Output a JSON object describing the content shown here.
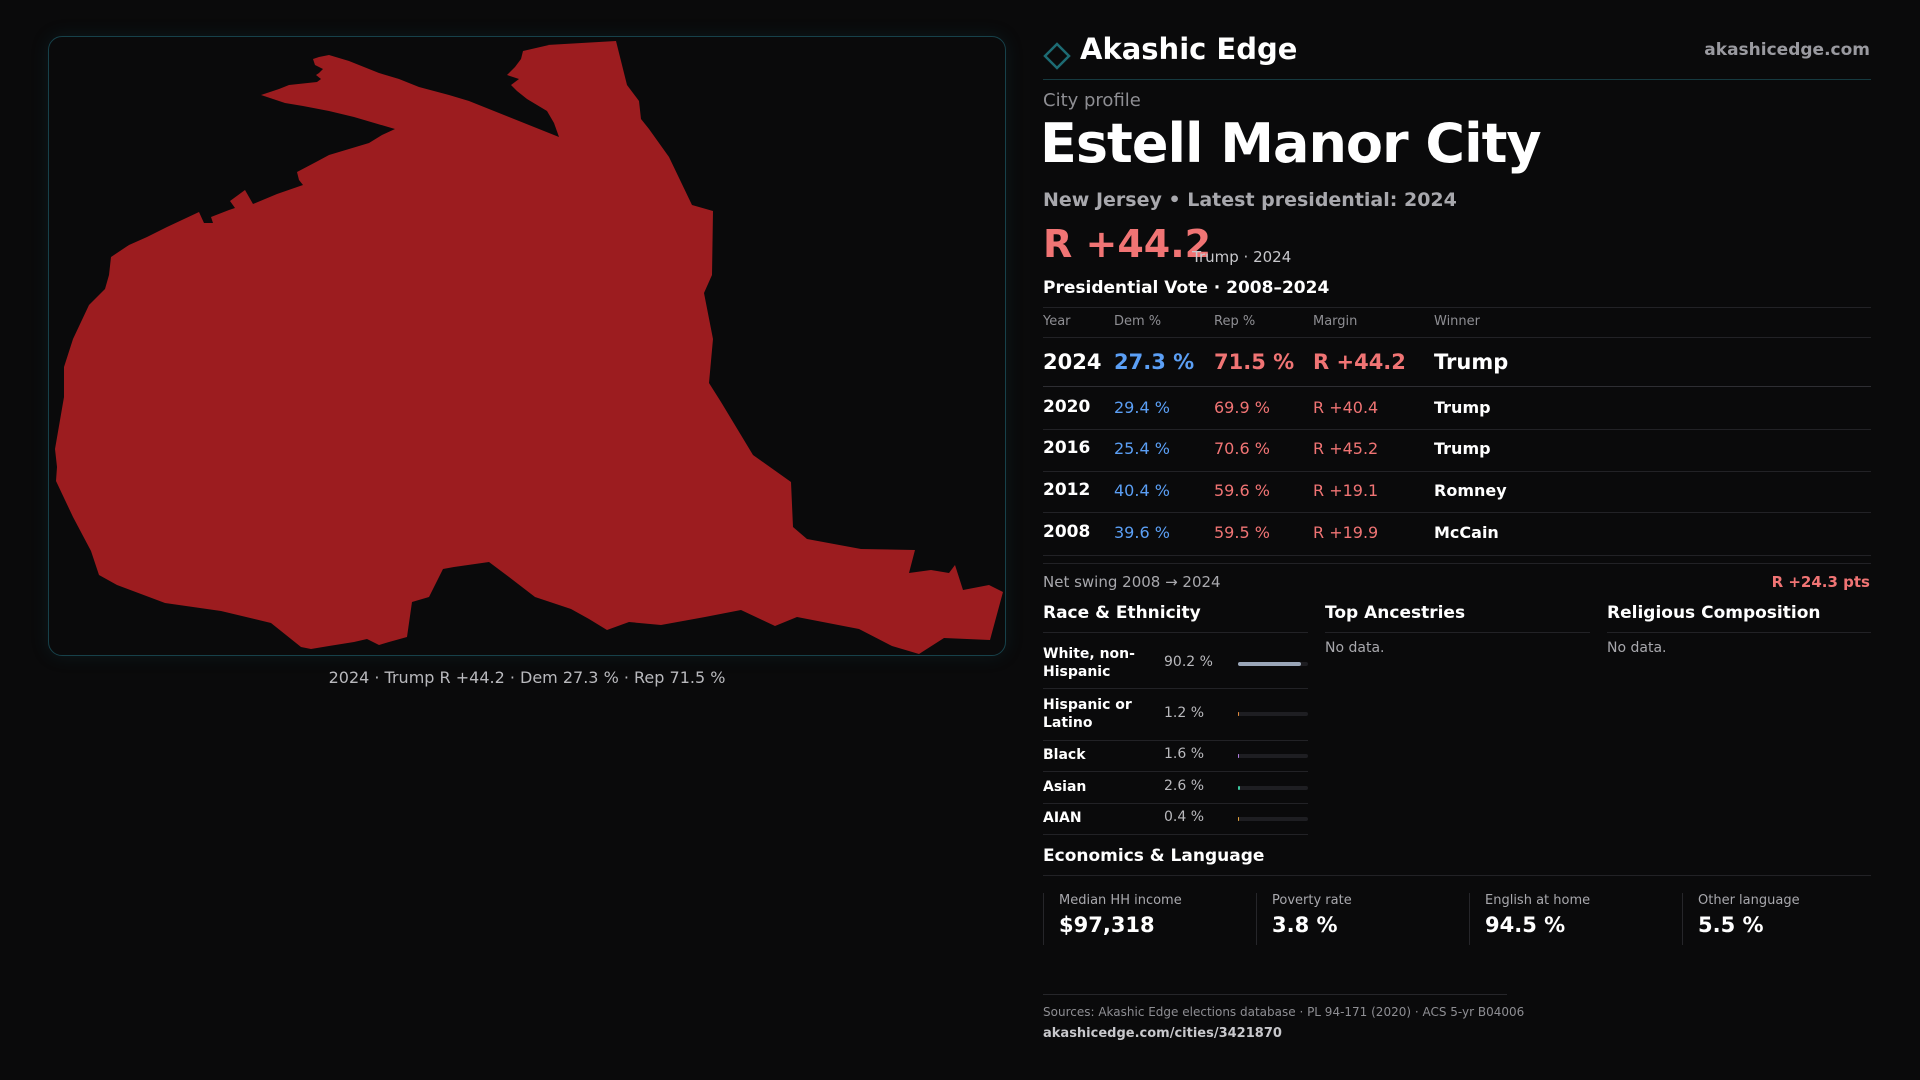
{
  "brand": {
    "name": "Akashic Edge",
    "url": "akashicedge.com",
    "logo_icon": "diamond-outline-icon"
  },
  "profile": {
    "kicker": "City profile",
    "city": "Estell Manor City",
    "subtitle": "New Jersey • Latest presidential: 2024",
    "headline_margin": "R +44.2",
    "headline_note": "Trump · 2024"
  },
  "map": {
    "caption": "2024 · Trump R +44.2 · Dem 27.3 % · Rep 71.5 %",
    "fill_color": "#9c1c1f"
  },
  "vote_table": {
    "title": "Presidential Vote · 2008–2024",
    "headers": [
      "Year",
      "Dem %",
      "Rep %",
      "Margin",
      "Winner"
    ],
    "rows": [
      {
        "year": "2024",
        "dem": "27.3 %",
        "rep": "71.5 %",
        "margin": "R +44.2",
        "winner": "Trump"
      },
      {
        "year": "2020",
        "dem": "29.4 %",
        "rep": "69.9 %",
        "margin": "R +40.4",
        "winner": "Trump"
      },
      {
        "year": "2016",
        "dem": "25.4 %",
        "rep": "70.6 %",
        "margin": "R +45.2",
        "winner": "Trump"
      },
      {
        "year": "2012",
        "dem": "40.4 %",
        "rep": "59.6 %",
        "margin": "R +19.1",
        "winner": "Romney"
      },
      {
        "year": "2008",
        "dem": "39.6 %",
        "rep": "59.5 %",
        "margin": "R +19.9",
        "winner": "McCain"
      }
    ],
    "swing_label": "Net swing 2008 → 2024",
    "swing_value": "R +24.3 pts"
  },
  "race": {
    "title": "Race & Ethnicity",
    "rows": [
      {
        "label": "White, non-Hispanic",
        "pct": "90.2 %",
        "value": 90.2,
        "color": "#9aa6b8"
      },
      {
        "label": "Hispanic or Latino",
        "pct": "1.2 %",
        "value": 1.2,
        "color": "#e08a3c"
      },
      {
        "label": "Black",
        "pct": "1.6 %",
        "value": 1.6,
        "color": "#b07be0"
      },
      {
        "label": "Asian",
        "pct": "2.6 %",
        "value": 2.6,
        "color": "#3cc8a0"
      },
      {
        "label": "AIAN",
        "pct": "0.4 %",
        "value": 0.4,
        "color": "#e0a03c"
      }
    ]
  },
  "ancestries": {
    "title": "Top Ancestries",
    "empty": "No data."
  },
  "religion": {
    "title": "Religious Composition",
    "empty": "No data."
  },
  "economics": {
    "title": "Economics & Language",
    "stats": [
      {
        "label": "Median HH income",
        "value": "$97,318"
      },
      {
        "label": "Poverty rate",
        "value": "3.8 %"
      },
      {
        "label": "English at home",
        "value": "94.5 %"
      },
      {
        "label": "Other language",
        "value": "5.5 %"
      }
    ]
  },
  "footer": {
    "sources": "Sources: Akashic Edge elections database · PL 94-171 (2020) · ACS 5-yr B04006",
    "url": "akashicedge.com/cities/3421870"
  },
  "colors": {
    "dem": "#5b9ff5",
    "rep": "#f07474",
    "accent": "#17414a",
    "background": "#0a0a0b"
  }
}
